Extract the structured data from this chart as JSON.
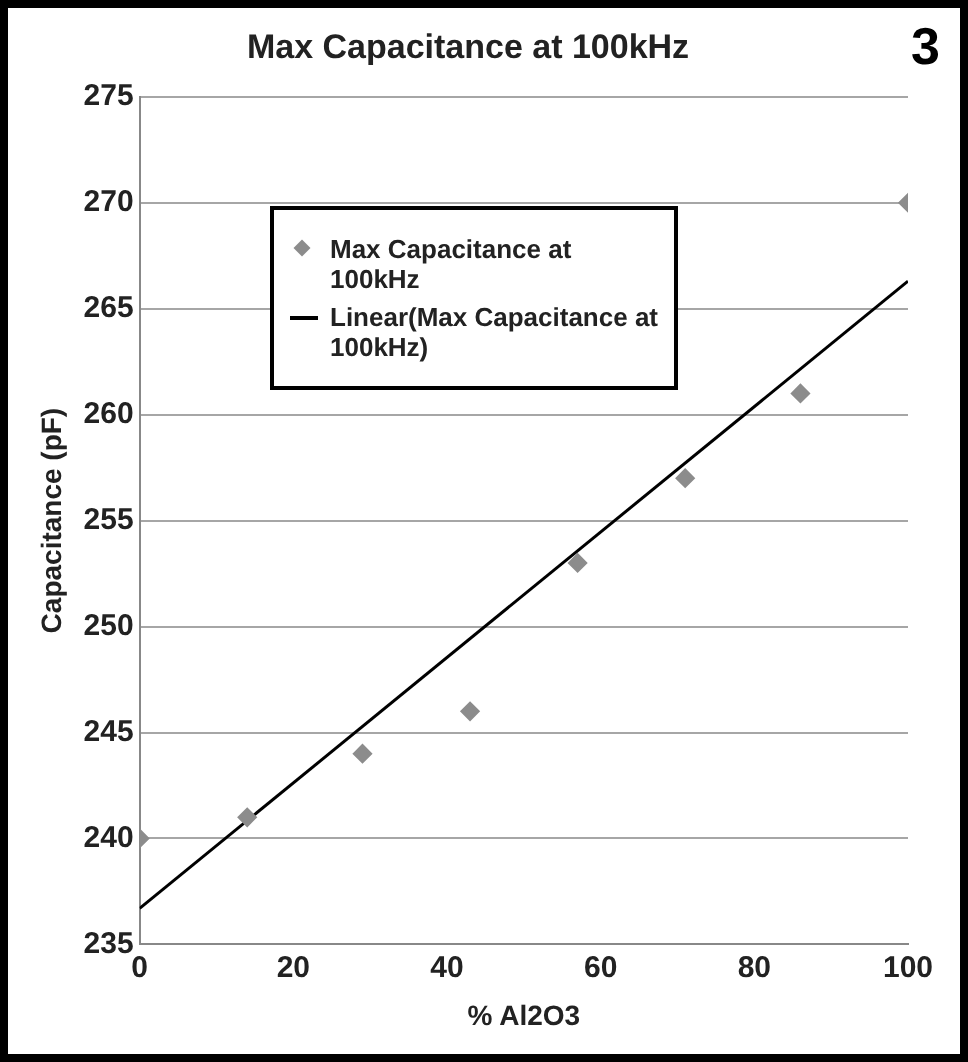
{
  "chart_data": {
    "type": "scatter",
    "title": "Max Capacitance at 100kHz",
    "xlabel": "% Al2O3",
    "ylabel": "Capacitance (pF)",
    "annotations": [
      "3"
    ],
    "xlim": [
      0,
      100
    ],
    "xticks": [
      0,
      20,
      40,
      60,
      80,
      100
    ],
    "ylim": [
      235,
      275
    ],
    "yticks": [
      235,
      240,
      245,
      250,
      255,
      260,
      265,
      270,
      275
    ],
    "grid": "y",
    "legend": "top left",
    "marker": "diamond",
    "series": [
      {
        "name": "Max Capacitance at 100kHz",
        "type": "scatter",
        "color": "#8c8c8c",
        "x": [
          0,
          14,
          29,
          43,
          57,
          71,
          86,
          100
        ],
        "values": [
          240,
          241,
          244,
          246,
          253,
          257,
          261,
          270
        ]
      },
      {
        "name": "Linear(Max Capacitance at 100kHz)",
        "type": "line",
        "color": "#000000",
        "x": [
          0,
          100
        ],
        "values": [
          236.7,
          266.3
        ],
        "marker": "none"
      }
    ]
  }
}
